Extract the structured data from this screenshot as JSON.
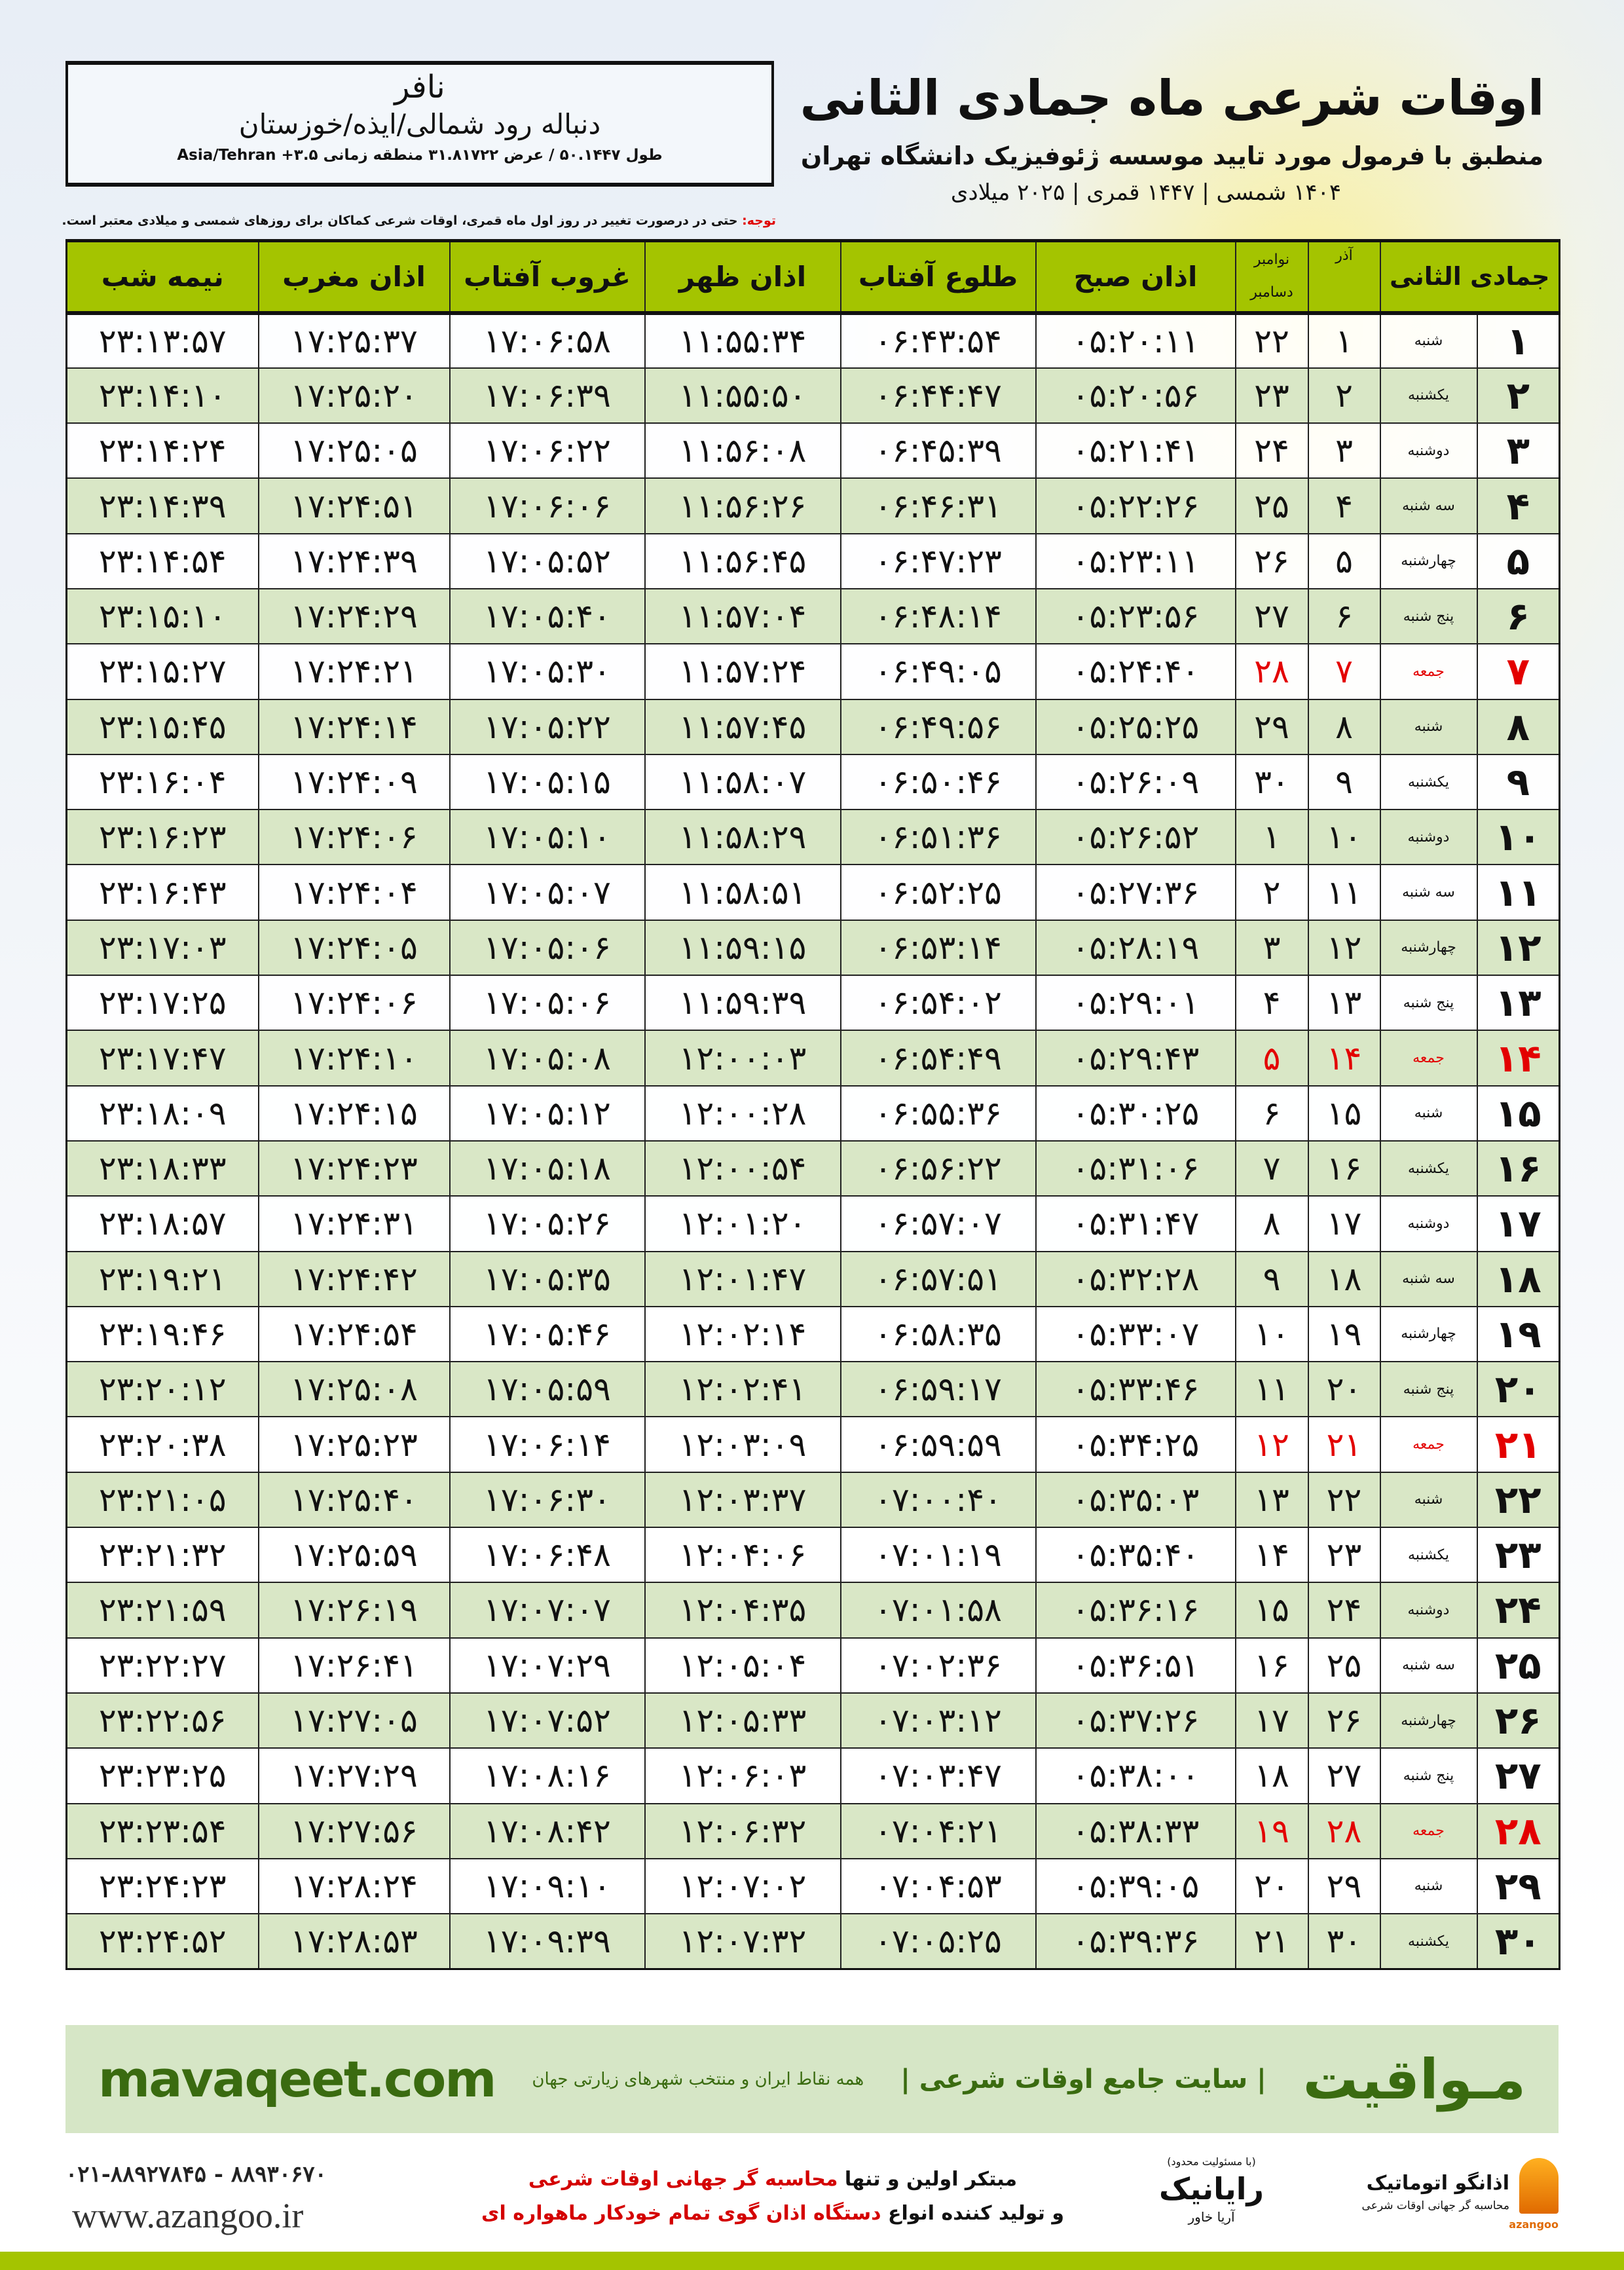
{
  "info": {
    "city": "نافر",
    "area": "دنباله رود شمالی/ایذه/خوزستان",
    "coords": "طول ۵۰.۱۴۴۷ / عرض ۳۱.۸۱۷۲۲ منطقه زمانی Asia/Tehran +۳.۵"
  },
  "title": "اوقات شرعی ماه جمادی الثانی",
  "subtitle": "منطبق با فرمول مورد تایید موسسه ژئوفیزیک دانشگاه تهران",
  "dateline": "۱۴۰۴ شمسی | ۱۴۴۷ قمری | ۲۰۲۵ میلادی",
  "note": {
    "label": "توجه:",
    "text": " حتی در درصورت تغییر در روز اول ماه قمری، اوقات شرعی کماکان برای روزهای شمسی و میلادی معتبر است."
  },
  "colors": {
    "header": "#a4c400",
    "row_alt": "#d9e7c6",
    "friday": "#e30000",
    "brand": "#3a6b10"
  },
  "table": {
    "headers": {
      "month": "جمادی الثانی",
      "azar": "آذر",
      "nov": "نوامبر",
      "dec": "دسامبر",
      "sobh": "اذان صبح",
      "tolu": "طلوع آفتاب",
      "zohr": "اذان ظهر",
      "ghorub": "غروب آفتاب",
      "maghreb": "اذان مغرب",
      "nimeshab": "نیمه شب"
    },
    "rows": [
      [
        "۱",
        "شنبه",
        "۱",
        "۲۲",
        "۰۵:۲۰:۱۱",
        "۰۶:۴۳:۵۴",
        "۱۱:۵۵:۳۴",
        "۱۷:۰۶:۵۸",
        "۱۷:۲۵:۳۷",
        "۲۳:۱۳:۵۷"
      ],
      [
        "۲",
        "یکشنبه",
        "۲",
        "۲۳",
        "۰۵:۲۰:۵۶",
        "۰۶:۴۴:۴۷",
        "۱۱:۵۵:۵۰",
        "۱۷:۰۶:۳۹",
        "۱۷:۲۵:۲۰",
        "۲۳:۱۴:۱۰"
      ],
      [
        "۳",
        "دوشنبه",
        "۳",
        "۲۴",
        "۰۵:۲۱:۴۱",
        "۰۶:۴۵:۳۹",
        "۱۱:۵۶:۰۸",
        "۱۷:۰۶:۲۲",
        "۱۷:۲۵:۰۵",
        "۲۳:۱۴:۲۴"
      ],
      [
        "۴",
        "سه شنبه",
        "۴",
        "۲۵",
        "۰۵:۲۲:۲۶",
        "۰۶:۴۶:۳۱",
        "۱۱:۵۶:۲۶",
        "۱۷:۰۶:۰۶",
        "۱۷:۲۴:۵۱",
        "۲۳:۱۴:۳۹"
      ],
      [
        "۵",
        "چهارشنبه",
        "۵",
        "۲۶",
        "۰۵:۲۳:۱۱",
        "۰۶:۴۷:۲۳",
        "۱۱:۵۶:۴۵",
        "۱۷:۰۵:۵۲",
        "۱۷:۲۴:۳۹",
        "۲۳:۱۴:۵۴"
      ],
      [
        "۶",
        "پنج شنبه",
        "۶",
        "۲۷",
        "۰۵:۲۳:۵۶",
        "۰۶:۴۸:۱۴",
        "۱۱:۵۷:۰۴",
        "۱۷:۰۵:۴۰",
        "۱۷:۲۴:۲۹",
        "۲۳:۱۵:۱۰"
      ],
      [
        "۷",
        "جمعه",
        "۷",
        "۲۸",
        "۰۵:۲۴:۴۰",
        "۰۶:۴۹:۰۵",
        "۱۱:۵۷:۲۴",
        "۱۷:۰۵:۳۰",
        "۱۷:۲۴:۲۱",
        "۲۳:۱۵:۲۷"
      ],
      [
        "۸",
        "شنبه",
        "۸",
        "۲۹",
        "۰۵:۲۵:۲۵",
        "۰۶:۴۹:۵۶",
        "۱۱:۵۷:۴۵",
        "۱۷:۰۵:۲۲",
        "۱۷:۲۴:۱۴",
        "۲۳:۱۵:۴۵"
      ],
      [
        "۹",
        "یکشنبه",
        "۹",
        "۳۰",
        "۰۵:۲۶:۰۹",
        "۰۶:۵۰:۴۶",
        "۱۱:۵۸:۰۷",
        "۱۷:۰۵:۱۵",
        "۱۷:۲۴:۰۹",
        "۲۳:۱۶:۰۴"
      ],
      [
        "۱۰",
        "دوشنبه",
        "۱۰",
        "۱",
        "۰۵:۲۶:۵۲",
        "۰۶:۵۱:۳۶",
        "۱۱:۵۸:۲۹",
        "۱۷:۰۵:۱۰",
        "۱۷:۲۴:۰۶",
        "۲۳:۱۶:۲۳"
      ],
      [
        "۱۱",
        "سه شنبه",
        "۱۱",
        "۲",
        "۰۵:۲۷:۳۶",
        "۰۶:۵۲:۲۵",
        "۱۱:۵۸:۵۱",
        "۱۷:۰۵:۰۷",
        "۱۷:۲۴:۰۴",
        "۲۳:۱۶:۴۳"
      ],
      [
        "۱۲",
        "چهارشنبه",
        "۱۲",
        "۳",
        "۰۵:۲۸:۱۹",
        "۰۶:۵۳:۱۴",
        "۱۱:۵۹:۱۵",
        "۱۷:۰۵:۰۶",
        "۱۷:۲۴:۰۵",
        "۲۳:۱۷:۰۳"
      ],
      [
        "۱۳",
        "پنج شنبه",
        "۱۳",
        "۴",
        "۰۵:۲۹:۰۱",
        "۰۶:۵۴:۰۲",
        "۱۱:۵۹:۳۹",
        "۱۷:۰۵:۰۶",
        "۱۷:۲۴:۰۶",
        "۲۳:۱۷:۲۵"
      ],
      [
        "۱۴",
        "جمعه",
        "۱۴",
        "۵",
        "۰۵:۲۹:۴۳",
        "۰۶:۵۴:۴۹",
        "۱۲:۰۰:۰۳",
        "۱۷:۰۵:۰۸",
        "۱۷:۲۴:۱۰",
        "۲۳:۱۷:۴۷"
      ],
      [
        "۱۵",
        "شنبه",
        "۱۵",
        "۶",
        "۰۵:۳۰:۲۵",
        "۰۶:۵۵:۳۶",
        "۱۲:۰۰:۲۸",
        "۱۷:۰۵:۱۲",
        "۱۷:۲۴:۱۵",
        "۲۳:۱۸:۰۹"
      ],
      [
        "۱۶",
        "یکشنبه",
        "۱۶",
        "۷",
        "۰۵:۳۱:۰۶",
        "۰۶:۵۶:۲۲",
        "۱۲:۰۰:۵۴",
        "۱۷:۰۵:۱۸",
        "۱۷:۲۴:۲۳",
        "۲۳:۱۸:۳۳"
      ],
      [
        "۱۷",
        "دوشنبه",
        "۱۷",
        "۸",
        "۰۵:۳۱:۴۷",
        "۰۶:۵۷:۰۷",
        "۱۲:۰۱:۲۰",
        "۱۷:۰۵:۲۶",
        "۱۷:۲۴:۳۱",
        "۲۳:۱۸:۵۷"
      ],
      [
        "۱۸",
        "سه شنبه",
        "۱۸",
        "۹",
        "۰۵:۳۲:۲۸",
        "۰۶:۵۷:۵۱",
        "۱۲:۰۱:۴۷",
        "۱۷:۰۵:۳۵",
        "۱۷:۲۴:۴۲",
        "۲۳:۱۹:۲۱"
      ],
      [
        "۱۹",
        "چهارشنبه",
        "۱۹",
        "۱۰",
        "۰۵:۳۳:۰۷",
        "۰۶:۵۸:۳۵",
        "۱۲:۰۲:۱۴",
        "۱۷:۰۵:۴۶",
        "۱۷:۲۴:۵۴",
        "۲۳:۱۹:۴۶"
      ],
      [
        "۲۰",
        "پنج شنبه",
        "۲۰",
        "۱۱",
        "۰۵:۳۳:۴۶",
        "۰۶:۵۹:۱۷",
        "۱۲:۰۲:۴۱",
        "۱۷:۰۵:۵۹",
        "۱۷:۲۵:۰۸",
        "۲۳:۲۰:۱۲"
      ],
      [
        "۲۱",
        "جمعه",
        "۲۱",
        "۱۲",
        "۰۵:۳۴:۲۵",
        "۰۶:۵۹:۵۹",
        "۱۲:۰۳:۰۹",
        "۱۷:۰۶:۱۴",
        "۱۷:۲۵:۲۳",
        "۲۳:۲۰:۳۸"
      ],
      [
        "۲۲",
        "شنبه",
        "۲۲",
        "۱۳",
        "۰۵:۳۵:۰۳",
        "۰۷:۰۰:۴۰",
        "۱۲:۰۳:۳۷",
        "۱۷:۰۶:۳۰",
        "۱۷:۲۵:۴۰",
        "۲۳:۲۱:۰۵"
      ],
      [
        "۲۳",
        "یکشنبه",
        "۲۳",
        "۱۴",
        "۰۵:۳۵:۴۰",
        "۰۷:۰۱:۱۹",
        "۱۲:۰۴:۰۶",
        "۱۷:۰۶:۴۸",
        "۱۷:۲۵:۵۹",
        "۲۳:۲۱:۳۲"
      ],
      [
        "۲۴",
        "دوشنبه",
        "۲۴",
        "۱۵",
        "۰۵:۳۶:۱۶",
        "۰۷:۰۱:۵۸",
        "۱۲:۰۴:۳۵",
        "۱۷:۰۷:۰۷",
        "۱۷:۲۶:۱۹",
        "۲۳:۲۱:۵۹"
      ],
      [
        "۲۵",
        "سه شنبه",
        "۲۵",
        "۱۶",
        "۰۵:۳۶:۵۱",
        "۰۷:۰۲:۳۶",
        "۱۲:۰۵:۰۴",
        "۱۷:۰۷:۲۹",
        "۱۷:۲۶:۴۱",
        "۲۳:۲۲:۲۷"
      ],
      [
        "۲۶",
        "چهارشنبه",
        "۲۶",
        "۱۷",
        "۰۵:۳۷:۲۶",
        "۰۷:۰۳:۱۲",
        "۱۲:۰۵:۳۳",
        "۱۷:۰۷:۵۲",
        "۱۷:۲۷:۰۵",
        "۲۳:۲۲:۵۶"
      ],
      [
        "۲۷",
        "پنج شنبه",
        "۲۷",
        "۱۸",
        "۰۵:۳۸:۰۰",
        "۰۷:۰۳:۴۷",
        "۱۲:۰۶:۰۳",
        "۱۷:۰۸:۱۶",
        "۱۷:۲۷:۲۹",
        "۲۳:۲۳:۲۵"
      ],
      [
        "۲۸",
        "جمعه",
        "۲۸",
        "۱۹",
        "۰۵:۳۸:۳۳",
        "۰۷:۰۴:۲۱",
        "۱۲:۰۶:۳۲",
        "۱۷:۰۸:۴۲",
        "۱۷:۲۷:۵۶",
        "۲۳:۲۳:۵۴"
      ],
      [
        "۲۹",
        "شنبه",
        "۲۹",
        "۲۰",
        "۰۵:۳۹:۰۵",
        "۰۷:۰۴:۵۳",
        "۱۲:۰۷:۰۲",
        "۱۷:۰۹:۱۰",
        "۱۷:۲۸:۲۴",
        "۲۳:۲۴:۲۳"
      ],
      [
        "۳۰",
        "یکشنبه",
        "۳۰",
        "۲۱",
        "۰۵:۳۹:۳۶",
        "۰۷:۰۵:۲۵",
        "۱۲:۰۷:۳۲",
        "۱۷:۰۹:۳۹",
        "۱۷:۲۸:۵۳",
        "۲۳:۲۴:۵۲"
      ]
    ]
  },
  "banner": {
    "brand": "مـواقیت",
    "tagline": "| سایت جامع اوقات شرعی |",
    "tagline2": "همه نقاط ایران و منتخب شهرهای زیارتی جهان",
    "site": "mavaqeet.com"
  },
  "footer": {
    "phone": "۰۲۱-۸۸۹۲۷۸۴۵ - ۸۸۹۳۰۶۷۰",
    "www": "www.azangoo.ir",
    "line1_a": "مبتکر اولین و تنها ",
    "line1_b": "محاسبه گر جهانی اوقات شرعی",
    "line2_a": "و تولید کننده انواع ",
    "line2_b": "دستگاه اذان گوی تمام خودکار ماهواره ای",
    "rayanik": "رایانیک",
    "rayanik_small": "(با مسئولیت محدود)",
    "rayanik_sub": "آریا خاور",
    "azangoo": "اذانگو اتوماتیک",
    "azangoo_sub": "محاسبه گر جهانی اوقات شرعی",
    "azangoo_en": "azangoo"
  }
}
